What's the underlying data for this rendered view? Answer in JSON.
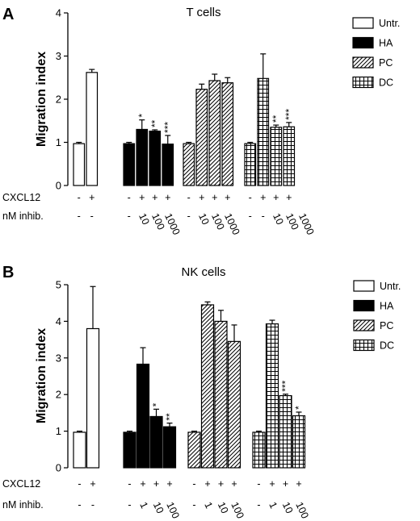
{
  "figure": {
    "panels": [
      {
        "letter": "A",
        "title": "T cells"
      },
      {
        "letter": "B",
        "title": "NK cells"
      }
    ]
  },
  "chart_data": [
    {
      "type": "bar",
      "title": "T cells",
      "panel": "A",
      "ylabel": "Migration index",
      "ylim": [
        0,
        4
      ],
      "yticks": [
        0,
        1,
        2,
        3,
        4
      ],
      "legend": {
        "placement": "top-right",
        "entries": [
          {
            "name": "Untr.",
            "pattern": "white"
          },
          {
            "name": "HA",
            "pattern": "black"
          },
          {
            "name": "PC",
            "pattern": "diagonal"
          },
          {
            "name": "DC",
            "pattern": "grid"
          }
        ]
      },
      "row_labels": {
        "cxcl12": "CXCL12",
        "inhib": "nM inhib."
      },
      "groups": [
        {
          "name": "Untr.",
          "pattern": "white",
          "bars": [
            {
              "value": 0.97,
              "error": 0.03,
              "cxcl12": "-",
              "inhib": "-",
              "sig": ""
            },
            {
              "value": 2.62,
              "error": 0.07,
              "cxcl12": "+",
              "inhib": "-",
              "sig": ""
            }
          ]
        },
        {
          "name": "HA",
          "pattern": "black",
          "bars": [
            {
              "value": 0.97,
              "error": 0.03,
              "cxcl12": "-",
              "inhib": "-",
              "sig": ""
            },
            {
              "value": 1.3,
              "error": 0.22,
              "cxcl12": "+",
              "inhib": "10",
              "sig": "*"
            },
            {
              "value": 1.26,
              "error": 0.03,
              "cxcl12": "+",
              "inhib": "100",
              "sig": "**"
            },
            {
              "value": 0.96,
              "error": 0.2,
              "cxcl12": "+",
              "inhib": "1000",
              "sig": "***"
            }
          ]
        },
        {
          "name": "PC",
          "pattern": "diagonal",
          "bars": [
            {
              "value": 0.97,
              "error": 0.03,
              "cxcl12": "-",
              "inhib": "-",
              "sig": ""
            },
            {
              "value": 2.23,
              "error": 0.12,
              "cxcl12": "+",
              "inhib": "10",
              "sig": ""
            },
            {
              "value": 2.43,
              "error": 0.15,
              "cxcl12": "+",
              "inhib": "100",
              "sig": ""
            },
            {
              "value": 2.38,
              "error": 0.12,
              "cxcl12": "+",
              "inhib": "1000",
              "sig": ""
            }
          ]
        },
        {
          "name": "DC",
          "pattern": "grid",
          "bars": [
            {
              "value": 0.97,
              "error": 0.03,
              "cxcl12": "-",
              "inhib": "-",
              "sig": ""
            },
            {
              "value": 2.48,
              "error": 0.57,
              "cxcl12": "+",
              "inhib": "-",
              "sig": ""
            },
            {
              "value": 1.35,
              "error": 0.05,
              "cxcl12": "+",
              "inhib": "10",
              "sig": "**"
            },
            {
              "value": 1.36,
              "error": 0.1,
              "cxcl12": "+",
              "inhib": "100",
              "sig": "***"
            }
          ]
        }
      ],
      "trailing_inhib_label": "1000"
    },
    {
      "type": "bar",
      "title": "NK cells",
      "panel": "B",
      "ylabel": "Migration index",
      "ylim": [
        0,
        5
      ],
      "yticks": [
        0,
        1,
        2,
        3,
        4,
        5
      ],
      "legend": {
        "placement": "top-right",
        "entries": [
          {
            "name": "Untr.",
            "pattern": "white"
          },
          {
            "name": "HA",
            "pattern": "black"
          },
          {
            "name": "PC",
            "pattern": "diagonal"
          },
          {
            "name": "DC",
            "pattern": "grid"
          }
        ]
      },
      "row_labels": {
        "cxcl12": "CXCL12",
        "inhib": "nM inhib."
      },
      "groups": [
        {
          "name": "Untr.",
          "pattern": "white",
          "bars": [
            {
              "value": 0.97,
              "error": 0.03,
              "cxcl12": "-",
              "inhib": "-",
              "sig": ""
            },
            {
              "value": 3.8,
              "error": 1.15,
              "cxcl12": "+",
              "inhib": "-",
              "sig": ""
            }
          ]
        },
        {
          "name": "HA",
          "pattern": "black",
          "bars": [
            {
              "value": 0.97,
              "error": 0.03,
              "cxcl12": "-",
              "inhib": "-",
              "sig": ""
            },
            {
              "value": 2.83,
              "error": 0.45,
              "cxcl12": "+",
              "inhib": "1",
              "sig": ""
            },
            {
              "value": 1.4,
              "error": 0.2,
              "cxcl12": "+",
              "inhib": "10",
              "sig": "*"
            },
            {
              "value": 1.12,
              "error": 0.1,
              "cxcl12": "+",
              "inhib": "100",
              "sig": "**"
            }
          ]
        },
        {
          "name": "PC",
          "pattern": "diagonal",
          "bars": [
            {
              "value": 0.97,
              "error": 0.03,
              "cxcl12": "-",
              "inhib": "-",
              "sig": ""
            },
            {
              "value": 4.45,
              "error": 0.08,
              "cxcl12": "+",
              "inhib": "1",
              "sig": ""
            },
            {
              "value": 4.0,
              "error": 0.3,
              "cxcl12": "+",
              "inhib": "10",
              "sig": ""
            },
            {
              "value": 3.45,
              "error": 0.45,
              "cxcl12": "+",
              "inhib": "100",
              "sig": ""
            }
          ]
        },
        {
          "name": "DC",
          "pattern": "grid",
          "bars": [
            {
              "value": 0.97,
              "error": 0.03,
              "cxcl12": "-",
              "inhib": "-",
              "sig": ""
            },
            {
              "value": 3.93,
              "error": 0.1,
              "cxcl12": "+",
              "inhib": "1",
              "sig": ""
            },
            {
              "value": 1.97,
              "error": 0.04,
              "cxcl12": "+",
              "inhib": "10",
              "sig": "***"
            },
            {
              "value": 1.42,
              "error": 0.1,
              "cxcl12": "+",
              "inhib": "100",
              "sig": "*"
            }
          ]
        }
      ]
    }
  ]
}
